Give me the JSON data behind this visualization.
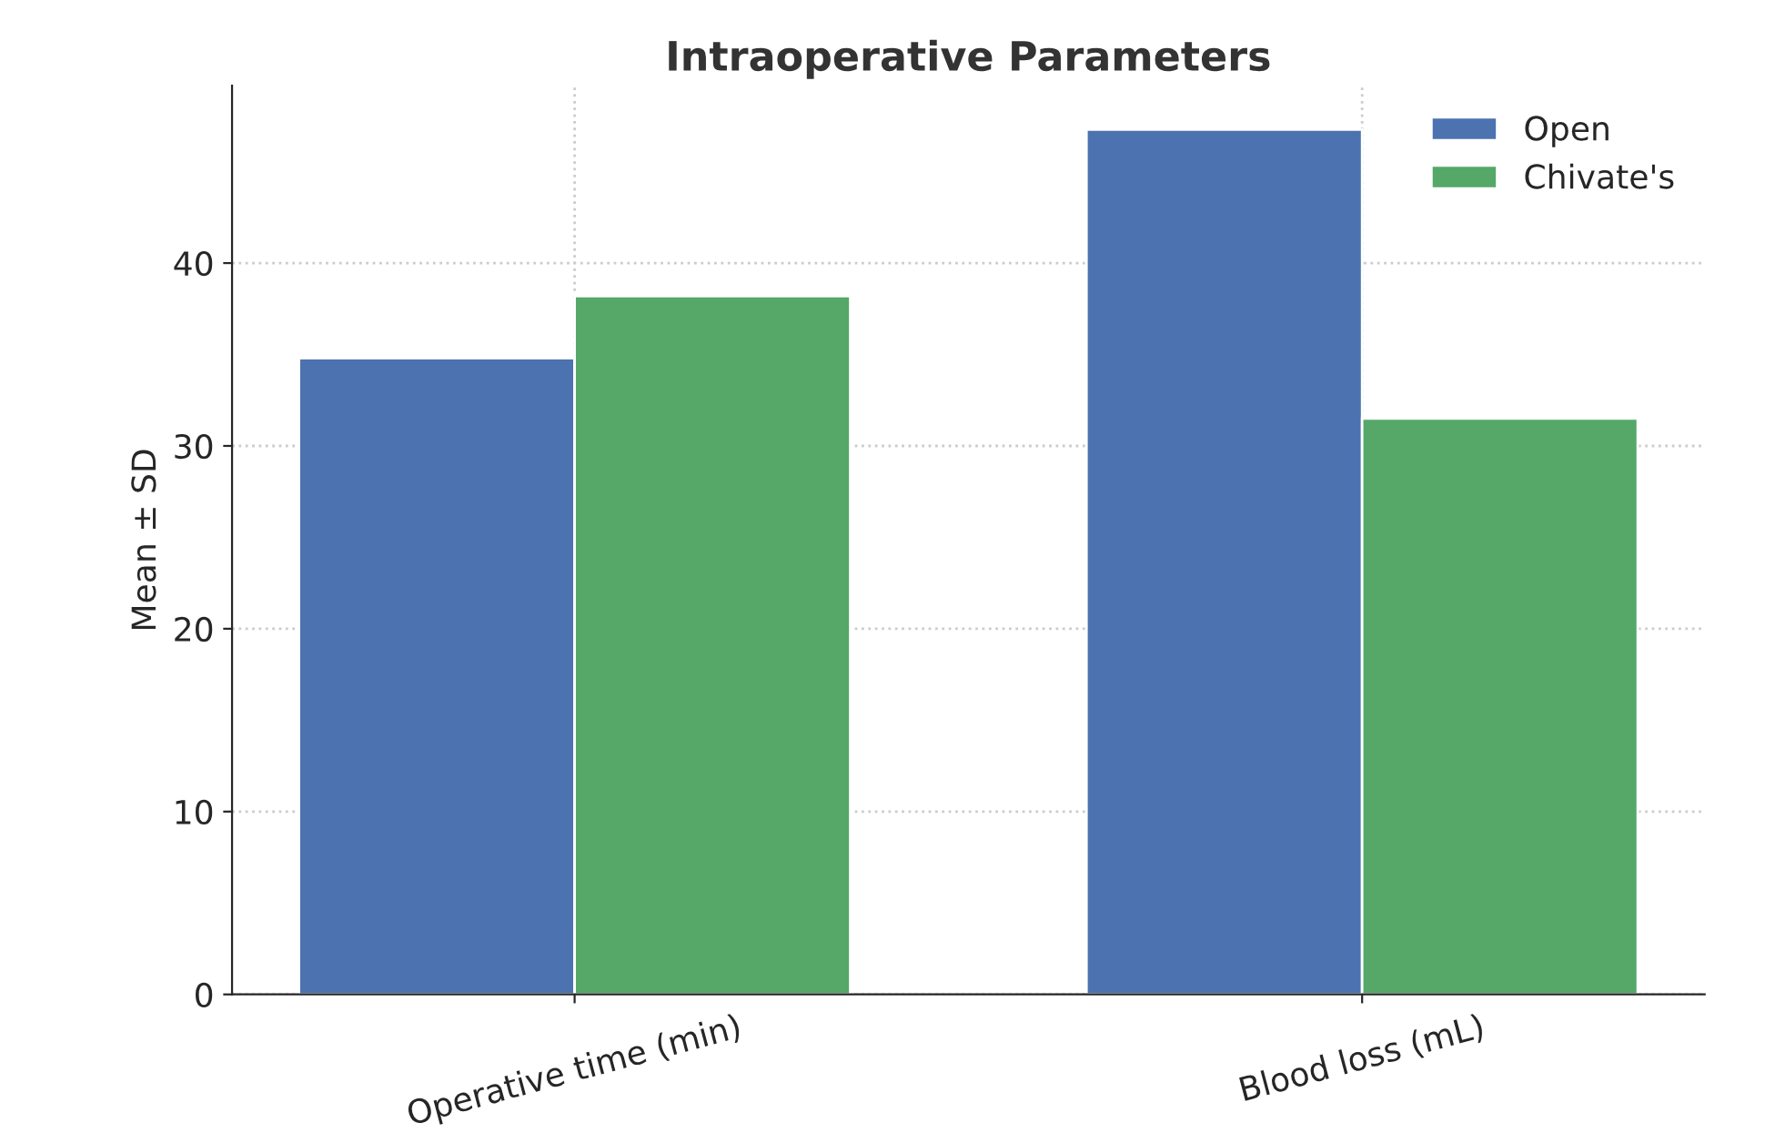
{
  "chart_data": {
    "type": "bar",
    "title": "Intraoperative Parameters",
    "ylabel": "Mean ± SD",
    "categories": [
      "Operative time (min)",
      "Blood loss (mL)"
    ],
    "series": [
      {
        "name": "Open",
        "color": "#4c72b0",
        "values": [
          34.8,
          47.3
        ]
      },
      {
        "name": "Chivate's",
        "color": "#55a868",
        "values": [
          38.2,
          31.5
        ]
      }
    ],
    "ylim": [
      0,
      49.7
    ],
    "yticks": [
      0,
      10,
      20,
      30,
      40
    ],
    "grid": true,
    "legend": "top right"
  }
}
